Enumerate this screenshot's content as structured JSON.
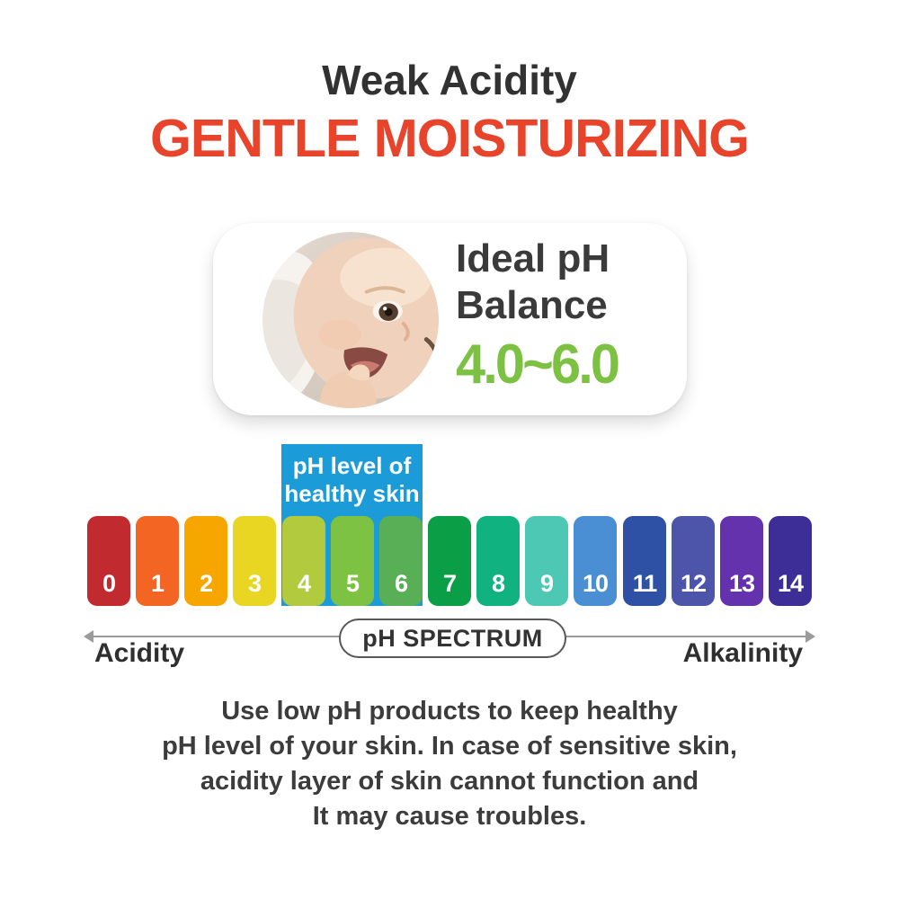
{
  "header": {
    "subtitle": "Weak Acidity",
    "subtitle_color": "#323232",
    "title": "GENTLE MOISTURIZING",
    "title_color": "#E8432B"
  },
  "ideal_card": {
    "image": "baby-face-photo",
    "heading_line1": "Ideal pH",
    "heading_line2": "Balance",
    "ph_range": "4.0~6.0",
    "range_color": "#7CC142"
  },
  "healthy_label": {
    "line1": "pH level of",
    "line2": "healthy skin",
    "background": "#1B9CD8",
    "covers_ph": "4-6"
  },
  "ph_scale": {
    "bars": [
      {
        "label": "0",
        "color": "#C12B2F"
      },
      {
        "label": "1",
        "color": "#F26522"
      },
      {
        "label": "2",
        "color": "#F7A600"
      },
      {
        "label": "3",
        "color": "#E9D622"
      },
      {
        "label": "4",
        "color": "#B2CB3E"
      },
      {
        "label": "5",
        "color": "#7DC242"
      },
      {
        "label": "6",
        "color": "#58AF56"
      },
      {
        "label": "7",
        "color": "#0A9F47"
      },
      {
        "label": "8",
        "color": "#10B380"
      },
      {
        "label": "9",
        "color": "#4CC8B4"
      },
      {
        "label": "10",
        "color": "#4A8FD4"
      },
      {
        "label": "11",
        "color": "#2E51A5"
      },
      {
        "label": "12",
        "color": "#4C55A9"
      },
      {
        "label": "13",
        "color": "#6532AE"
      },
      {
        "label": "14",
        "color": "#3D2E97"
      }
    ]
  },
  "axis": {
    "pill_label": "pH SPECTRUM",
    "left_label": "Acidity",
    "right_label": "Alkalinity"
  },
  "body": {
    "lines": [
      "Use low pH products to keep healthy",
      "pH level of your skin. In case of sensitive skin,",
      "acidity layer of skin cannot function and",
      "It may cause troubles."
    ]
  }
}
